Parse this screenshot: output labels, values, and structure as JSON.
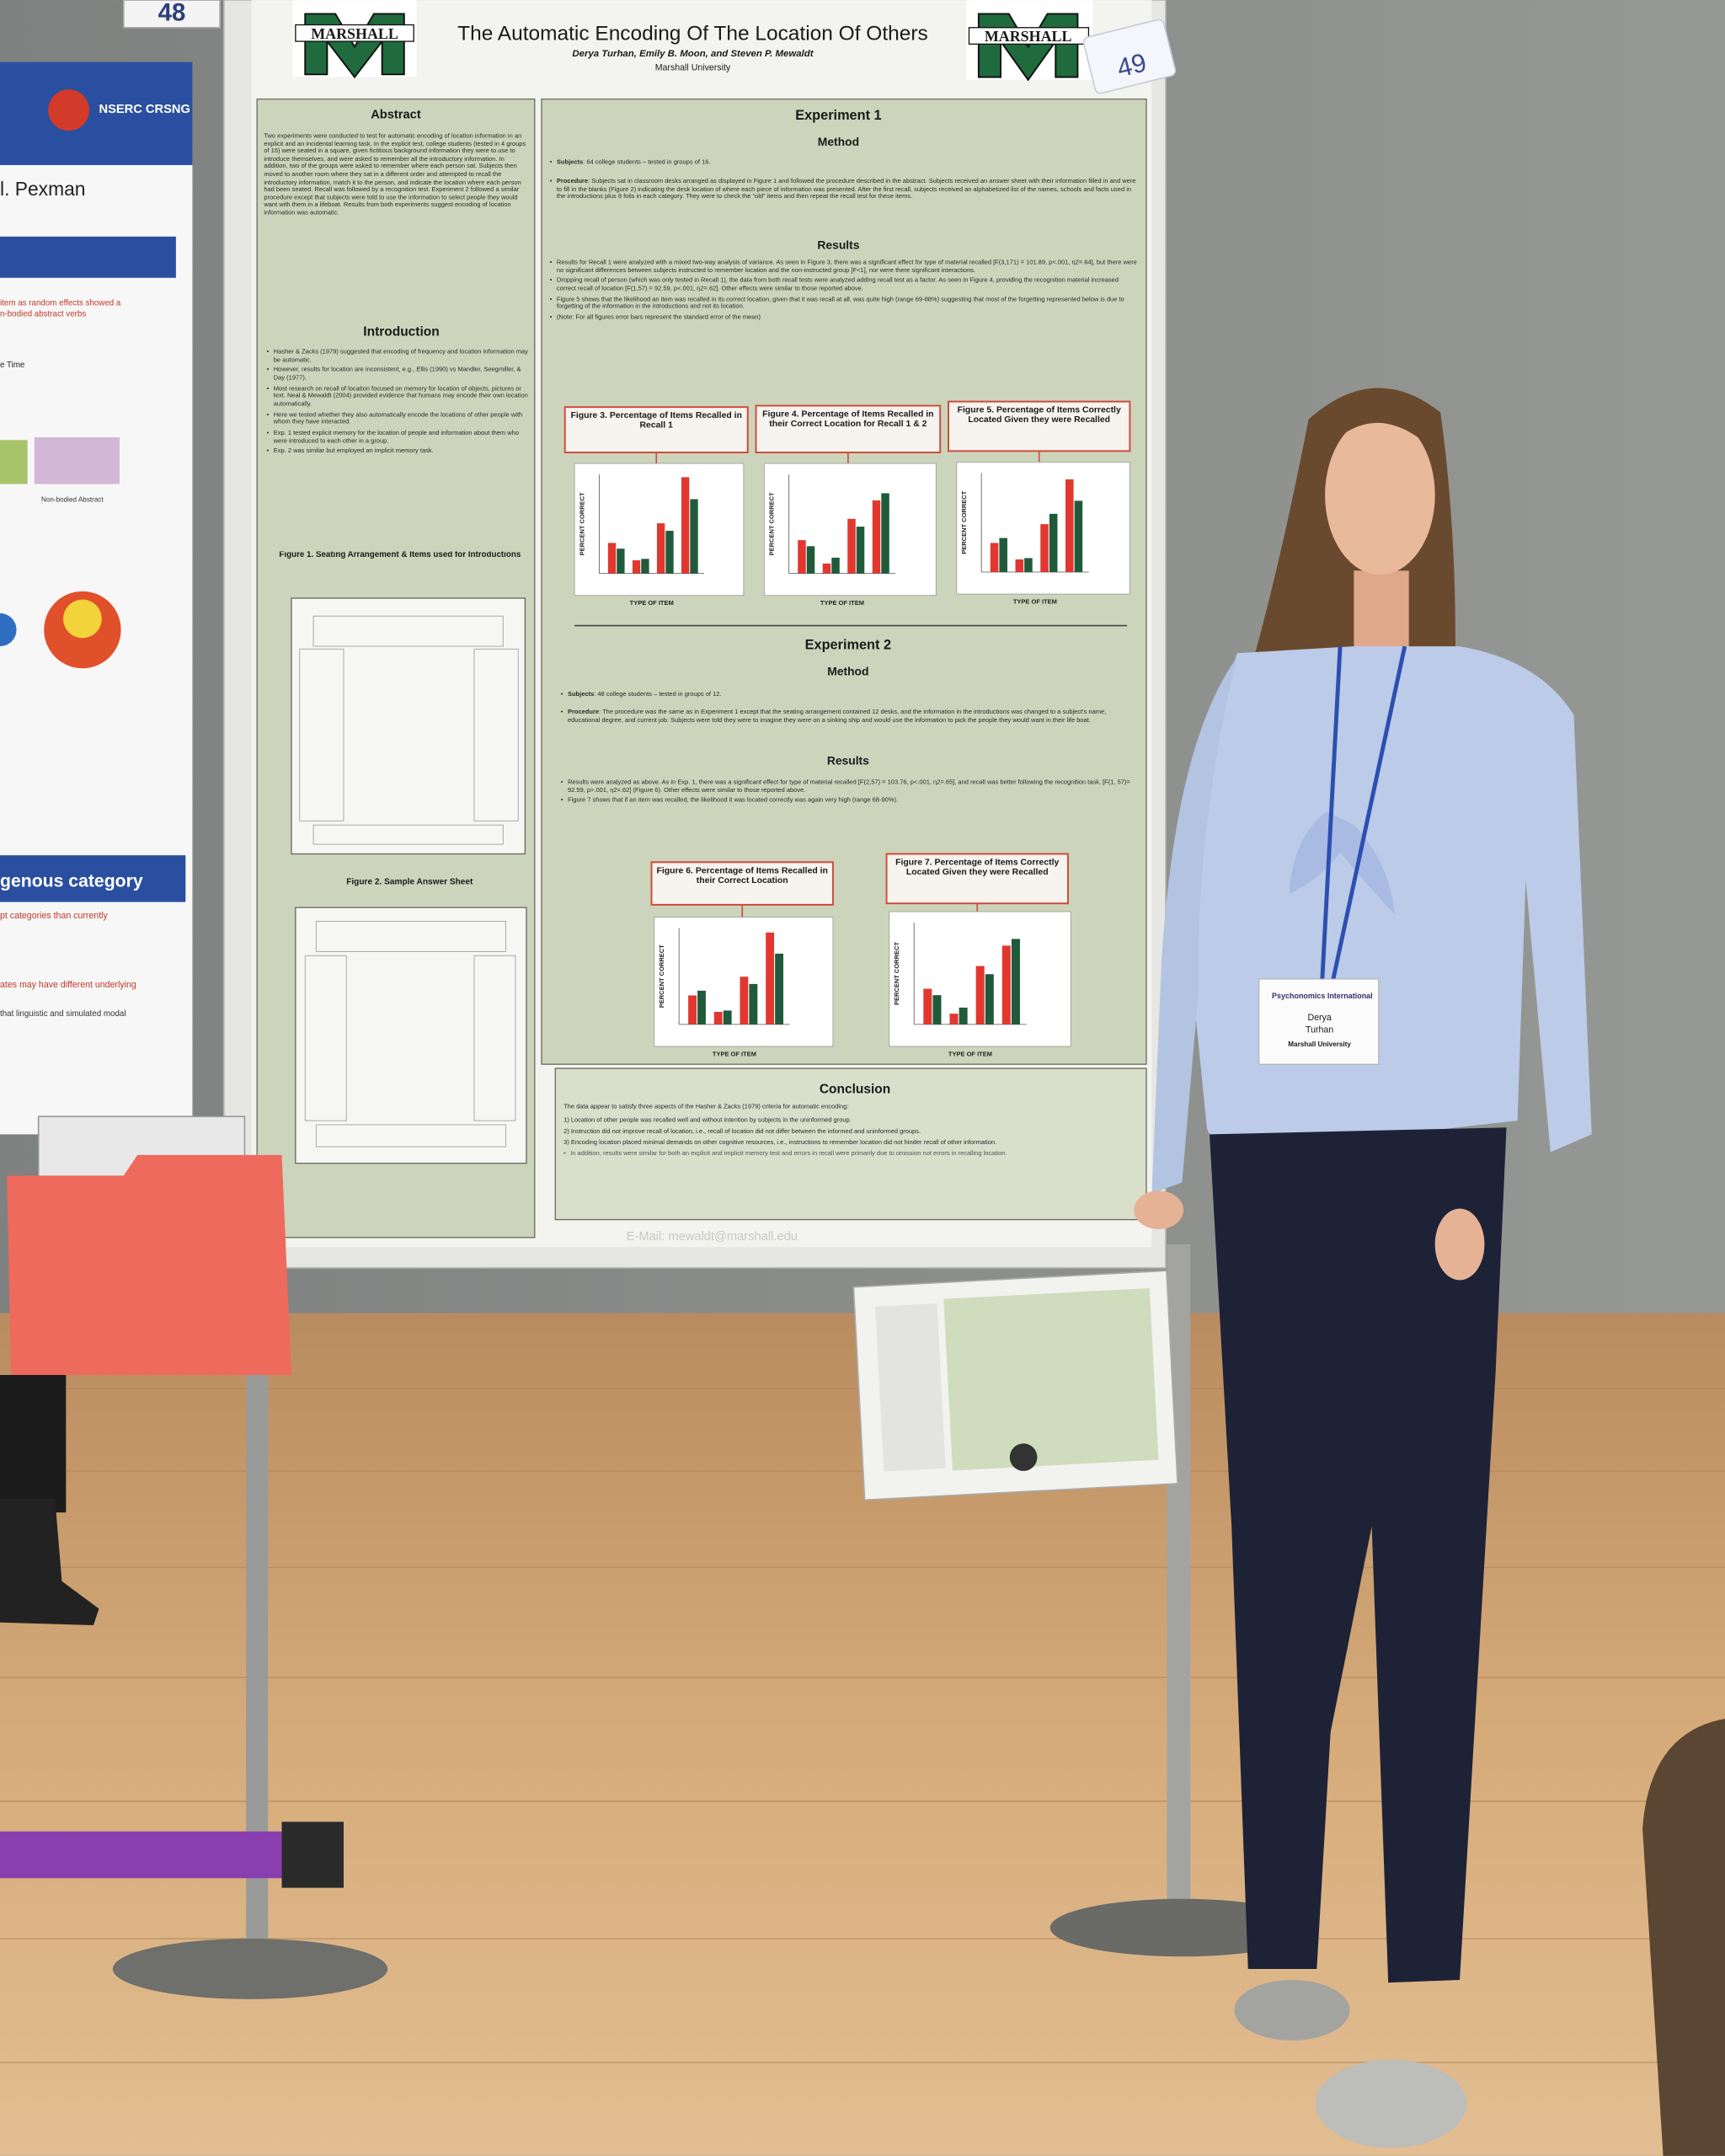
{
  "booth_numbers": {
    "left": "48",
    "right": "49"
  },
  "left_poster": {
    "org": "NSERC CRSNG",
    "author": "l. Pexman",
    "line_1": "item as random effects showed a",
    "line_2": "n-bodied abstract verbs",
    "label_time": "e Time",
    "label_nonbodied": "Non-bodied Abstract",
    "heading": "genous category",
    "line_3": "pt categories than currently",
    "line_4": "ates may have different underlying",
    "line_5": "that linguistic and simulated modal"
  },
  "poster": {
    "logo": "MARSHALL",
    "title": "The Automatic Encoding Of The Location Of Others",
    "authors": "Derya Turhan, Emily B. Moon, and Steven P. Mewaldt",
    "affiliation": "Marshall University",
    "abstract": {
      "heading": "Abstract",
      "text": "Two experiments were conducted to test for automatic encoding of location information in an explicit and an incidental learning task. In the explicit test, college students (tested in 4 groups of 16) were seated in a square, given fictitious background information they were to use to introduce themselves, and were asked to remember all the introductory information. In addition, two of the groups were asked to remember where each person sat. Subjects then moved to another room where they sat in a different order and attempted to recall the introductory information, match it to the person, and indicate the location where each person had been seated. Recall was followed by a recognition test. Experiment 2 followed a similar procedure except that subjects were told to use the information to select people they would want with them in a lifeboat. Results from both experiments suggest encoding of location information was automatic."
    },
    "introduction": {
      "heading": "Introduction",
      "bullets": [
        "Hasher & Zacks (1979) suggested that encoding of frequency and location information may be automatic.",
        "However, results for location are inconsistent, e.g., Ellis (1990) vs Mandler, Seegmiller, & Day (1977).",
        "Most research on recall of location focused on memory for location of objects, pictures or text. Neal & Mewaldt (2004) provided evidence that humans may encode their own location automatically.",
        "Here we tested whether they also automatically encode the locations of other people with whom they have interacted.",
        "Exp. 1 tested explicit memory for the location of people and information about them who were introduced to each other in a group.",
        "Exp. 2 was similar but employed an implicit memory task."
      ]
    },
    "figure_1": "Figure 1. Seating Arrangement & Items used for Introductions",
    "figure_2": "Figure 2. Sample Answer Sheet",
    "experiment_1": {
      "heading": "Experiment 1",
      "method": "Method",
      "subjects_label": "Subjects",
      "subjects": ": 64 college students – tested in groups of 16.",
      "procedure_label": "Procedure",
      "procedure": ": Subjects sat in classroom desks arranged as displayed in Figure 1 and followed the procedure described in the abstract. Subjects received an answer sheet with their information filled in and were to fill in the blanks (Figure 2) indicating the desk location of where each piece of information was presented. After the first recall, subjects received an alphabetized list of the names, schools and facts used in the introductions plus 8 foils in each category. They were to check the “old” items and then repeat the recall test for these items.",
      "results": "Results",
      "results_bullets": [
        "Results for Recall 1 were analyzed with a mixed two-way analysis of variance. As seen in Figure 3, there was a significant effect for type of material recalled [F(3,171) = 101.89, p<.001, η2=.64], but there were no significant differences between subjects instructed to remember location and the non-instructed group [F<1], nor were there significant interactions.",
        "Dropping recall of person (which was only tested in Recall 1), the data from both recall tests were analyzed adding recall test as a factor. As seen in Figure 4, providing the recognition material increased correct recall of location [F(1,57) = 92.59, p<.001, η2=.62]. Other effects were similar to those reported above.",
        "Figure 5 shows that the likelihood an item was recalled in its correct location, given that it was recall at all, was quite high (range 69-88%) suggesting that most of the forgetting represented below is due to forgetting of the information in the introductions and not its location.",
        "(Note: For all figures error bars represent the standard error of the mean)"
      ],
      "figures": [
        "Figure 3. Percentage of Items Recalled in Recall 1",
        "Figure 4. Percentage of Items Recalled in their Correct Location for Recall 1 & 2",
        "Figure 5. Percentage of Items Correctly Located Given they were Recalled"
      ]
    },
    "axis_y": "PERCENT CORRECT",
    "axis_x": "TYPE OF ITEM",
    "experiment_2": {
      "heading": "Experiment 2",
      "method": "Method",
      "subjects_label": "Subjects",
      "subjects": ": 48 college students – tested in groups of 12.",
      "procedure_label": "Procedure",
      "procedure": ": The procedure was the same as in Experiment 1 except that the seating arrangement contained 12 desks, and the information in the introductions was changed to a subject's name, educational degree, and current job. Subjects were told they were to imagine they were on a sinking ship and would use the information to pick the people they would want in their life boat.",
      "results": "Results",
      "results_bullets": [
        "Results were analyzed as above. As in Exp. 1, there was a significant effect for type of material recalled [F(2,57) = 103.76, p<.001, η2=.65], and recall was better following the recognition task, [F(1, 57)= 92.59, p>.001, η2=.62] (Figure 6). Other effects were similar to those reported above.",
        "Figure 7 shows that if an item was recalled, the likelihood it was located correctly was again very high (range 68-90%)."
      ],
      "figures": [
        "Figure 6. Percentage of Items Recalled in their Correct Location",
        "Figure 7. Percentage of Items Correctly Located Given they were Recalled"
      ]
    },
    "conclusion": {
      "heading": "Conclusion",
      "intro": "The data appear to satisfy three aspects of the Hasher & Zacks (1979) criteria for automatic encoding:",
      "items": [
        "1)  Location of other people was recalled well and without intention by subjects in the uninformed group.",
        "2)  Instruction did not improve recall of location, i.e., recall of location did not differ between the informed and uninformed groups.",
        "3)  Encoding location placed minimal demands on other cognitive resources, i.e., instructions to remember location did not hinder recall of other information."
      ],
      "note": "In addition, results were similar for both an explicit and implicit memory test and errors in recall were primarily due to omission not errors in recalling location."
    },
    "email": "E-Mail: mewaldt@marshall.edu"
  },
  "badge": {
    "conference": "Psychonomics International",
    "first_name": "Derya",
    "last_name": "Turhan",
    "affiliation": "Marshall University"
  }
}
